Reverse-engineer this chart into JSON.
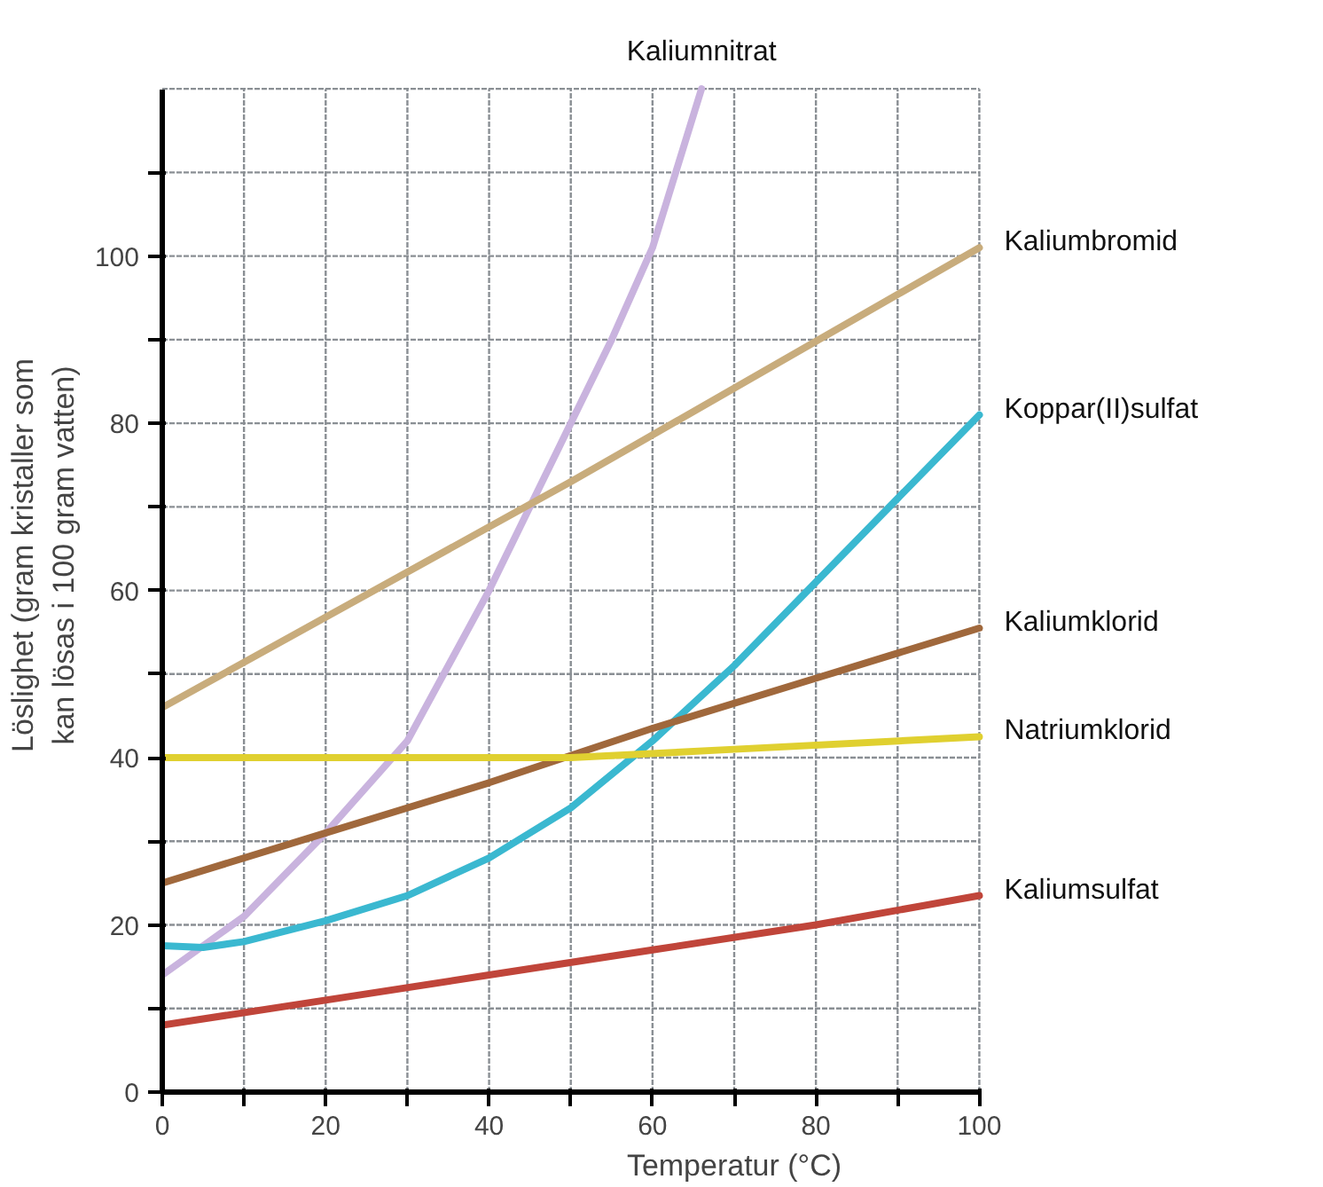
{
  "chart_data": {
    "type": "line",
    "xlabel": "Temperatur (°C)",
    "ylabel": "Löslighet (gram kristaller som kan lösas i 100 gram vatten)",
    "xlim": [
      0,
      100
    ],
    "ylim": [
      0,
      120
    ],
    "xticks": [
      0,
      {
        "value": 10,
        "label": null
      },
      20,
      {
        "value": 30,
        "label": null
      },
      40,
      {
        "value": 50,
        "label": null
      },
      60,
      {
        "value": 70,
        "label": null
      },
      80,
      {
        "value": 90,
        "label": null
      },
      100
    ],
    "yticks": [
      0,
      {
        "value": 10,
        "label": null
      },
      20,
      {
        "value": 30,
        "label": null
      },
      40,
      {
        "value": 50,
        "label": null
      },
      60,
      {
        "value": 70,
        "label": null
      },
      80,
      {
        "value": 90,
        "label": null
      },
      100,
      {
        "value": 110,
        "label": null
      }
    ],
    "grid": true,
    "marker": "none",
    "line_style": "solid",
    "series": [
      {
        "name": "Kaliumnitrat",
        "color": "#c9b3de",
        "x": [
          0,
          10,
          20,
          30,
          40,
          45,
          50,
          55,
          60,
          66
        ],
        "values": [
          14,
          21,
          31,
          42,
          60,
          70,
          80,
          90,
          101,
          120
        ]
      },
      {
        "name": "Kaliumbromid",
        "color": "#c8ac7c",
        "x": [
          0,
          50,
          100
        ],
        "values": [
          46,
          73,
          101
        ]
      },
      {
        "name": "Koppar(II)sulfat",
        "color": "#3ab8d0",
        "x": [
          0,
          5,
          10,
          20,
          30,
          40,
          50,
          60,
          70,
          80,
          90,
          100
        ],
        "values": [
          17.5,
          17.3,
          18,
          20.5,
          23.5,
          28,
          34,
          42,
          51,
          61,
          71,
          81
        ]
      },
      {
        "name": "Kaliumklorid",
        "color": "#a0683c",
        "x": [
          0,
          20,
          40,
          60,
          80,
          100
        ],
        "values": [
          25,
          31,
          37,
          43.5,
          49.5,
          55.5
        ]
      },
      {
        "name": "Natriumklorid",
        "color": "#e0d030",
        "x": [
          0,
          50,
          70,
          100
        ],
        "values": [
          40,
          40,
          41,
          42.5
        ]
      },
      {
        "name": "Kaliumsulfat",
        "color": "#c0453a",
        "x": [
          0,
          20,
          40,
          60,
          80,
          100
        ],
        "values": [
          8,
          11,
          14,
          17,
          20,
          23.5
        ]
      }
    ]
  }
}
